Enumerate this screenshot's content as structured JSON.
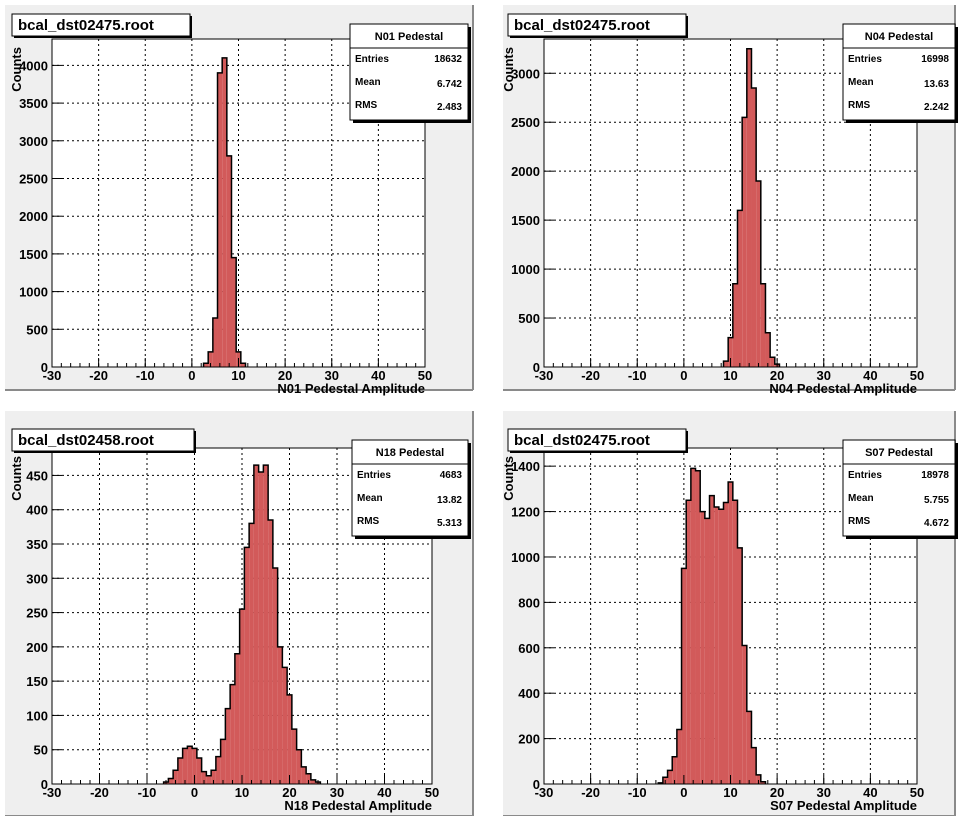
{
  "colors": {
    "pad_background": "#efefef",
    "frame": "#ffffff",
    "histogram_fill": "#d25a5a",
    "histogram_line": "#000000",
    "grid": "#000000"
  },
  "chart_data": [
    {
      "type": "bar",
      "file_title": "bcal_dst02475.root",
      "stats": {
        "name": "N01 Pedestal",
        "entries_label": "Entries",
        "entries": "18632",
        "mean_label": "Mean",
        "mean": "6.742",
        "rms_label": "RMS",
        "rms": "2.483"
      },
      "xlabel": "N01 Pedestal Amplitude",
      "ylabel": "Counts",
      "xlim": [
        -30,
        50
      ],
      "ylim": [
        0,
        4350
      ],
      "xticks": [
        -30,
        -20,
        -10,
        0,
        10,
        20,
        30,
        40,
        50
      ],
      "yticks": [
        0,
        500,
        1000,
        1500,
        2000,
        2500,
        3000,
        3500,
        4000
      ],
      "bin_width": 1,
      "x": [
        3,
        4,
        5,
        6,
        7,
        8,
        9,
        10,
        11
      ],
      "values": [
        50,
        200,
        650,
        3900,
        4100,
        2800,
        1450,
        200,
        50
      ]
    },
    {
      "type": "bar",
      "file_title": "bcal_dst02475.root",
      "stats": {
        "name": "N04 Pedestal",
        "entries_label": "Entries",
        "entries": "16998",
        "mean_label": "Mean",
        "mean": "13.63",
        "rms_label": "RMS",
        "rms": "2.242"
      },
      "xlabel": "N04 Pedestal Amplitude",
      "ylabel": "Counts",
      "xlim": [
        -30,
        50
      ],
      "ylim": [
        0,
        3350
      ],
      "xticks": [
        -30,
        -20,
        -10,
        0,
        10,
        20,
        30,
        40,
        50
      ],
      "yticks": [
        0,
        500,
        1000,
        1500,
        2000,
        2500,
        3000
      ],
      "bin_width": 1,
      "x": [
        9,
        10,
        11,
        12,
        13,
        14,
        15,
        16,
        17,
        18,
        19,
        20
      ],
      "values": [
        60,
        300,
        850,
        1600,
        2550,
        3250,
        2850,
        1900,
        850,
        350,
        100,
        30
      ]
    },
    {
      "type": "bar",
      "file_title": "bcal_dst02458.root",
      "stats": {
        "name": "N18 Pedestal",
        "entries_label": "Entries",
        "entries": "4683",
        "mean_label": "Mean",
        "mean": "13.82",
        "rms_label": "RMS",
        "rms": "5.313"
      },
      "xlabel": "N18 Pedestal Amplitude",
      "ylabel": "Counts",
      "xlim": [
        -30,
        50
      ],
      "ylim": [
        0,
        490
      ],
      "xticks": [
        -30,
        -20,
        -10,
        0,
        10,
        20,
        30,
        40,
        50
      ],
      "yticks": [
        0,
        50,
        100,
        150,
        200,
        250,
        300,
        350,
        400,
        450
      ],
      "bin_width": 1,
      "x": [
        -6,
        -5,
        -4,
        -3,
        -2,
        -1,
        0,
        1,
        2,
        3,
        4,
        5,
        6,
        7,
        8,
        9,
        10,
        11,
        12,
        13,
        14,
        15,
        16,
        17,
        18,
        19,
        20,
        21,
        22,
        23,
        24,
        25,
        26
      ],
      "values": [
        3,
        8,
        20,
        38,
        52,
        55,
        52,
        38,
        18,
        12,
        20,
        40,
        65,
        110,
        145,
        190,
        255,
        345,
        380,
        465,
        455,
        465,
        385,
        315,
        200,
        170,
        130,
        80,
        50,
        25,
        15,
        6,
        3
      ]
    },
    {
      "type": "bar",
      "file_title": "bcal_dst02475.root",
      "stats": {
        "name": "S07 Pedestal",
        "entries_label": "Entries",
        "entries": "18978",
        "mean_label": "Mean",
        "mean": "5.755",
        "rms_label": "RMS",
        "rms": "4.672"
      },
      "xlabel": "S07 Pedestal Amplitude",
      "ylabel": "Counts",
      "xlim": [
        -30,
        50
      ],
      "ylim": [
        0,
        1480
      ],
      "xticks": [
        -30,
        -20,
        -10,
        0,
        10,
        20,
        30,
        40,
        50
      ],
      "yticks": [
        0,
        200,
        400,
        600,
        800,
        1000,
        1200,
        1400
      ],
      "bin_width": 1,
      "x": [
        -5,
        -4,
        -3,
        -2,
        -1,
        0,
        1,
        2,
        3,
        4,
        5,
        6,
        7,
        8,
        9,
        10,
        11,
        12,
        13,
        14,
        15,
        16,
        17
      ],
      "values": [
        5,
        30,
        60,
        120,
        240,
        950,
        1250,
        1390,
        1380,
        1200,
        1170,
        1270,
        1220,
        1210,
        1240,
        1330,
        1250,
        1040,
        610,
        320,
        160,
        40,
        10
      ]
    }
  ]
}
